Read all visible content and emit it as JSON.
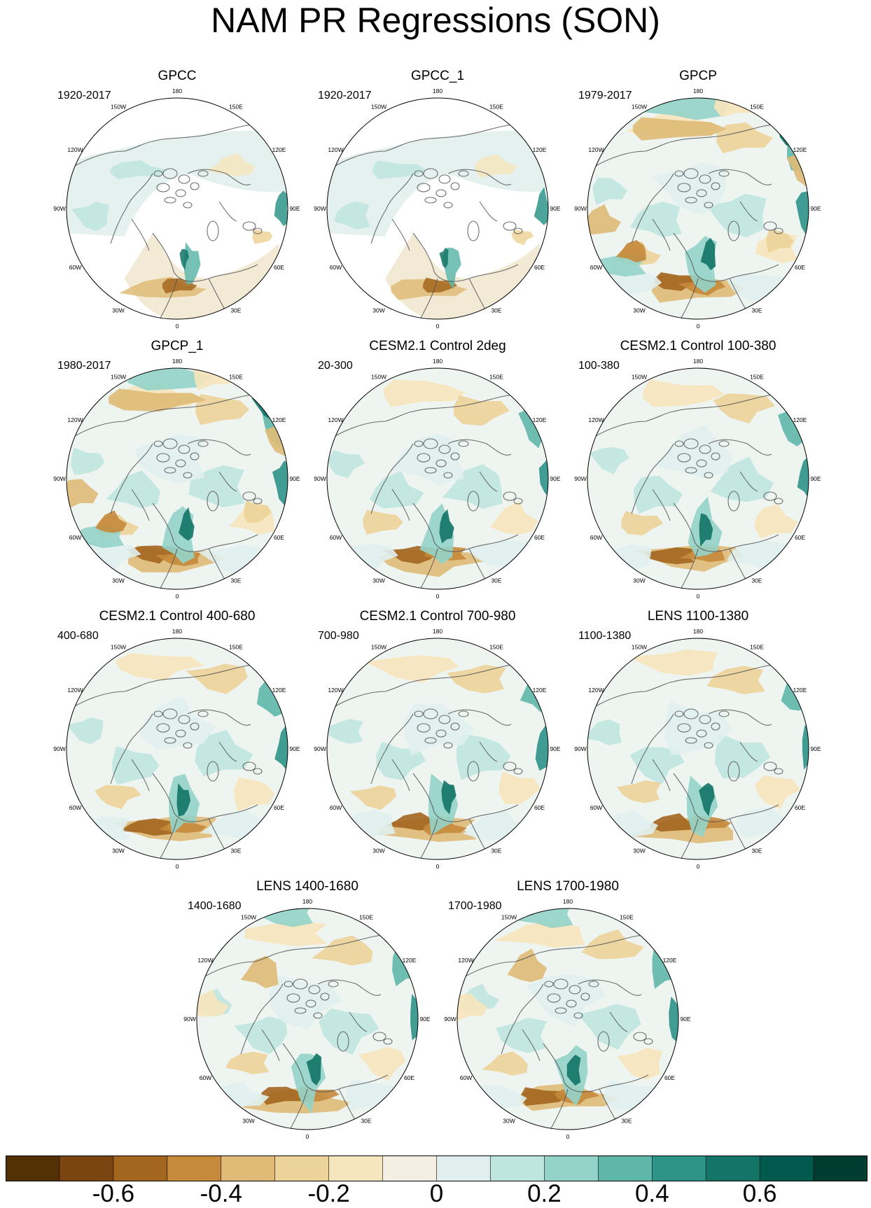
{
  "title": "NAM PR Regressions (SON)",
  "longitude_labels": [
    "180",
    "150E",
    "120E",
    "90E",
    "60E",
    "30E",
    "0",
    "30W",
    "60W",
    "90W",
    "120W",
    "150W"
  ],
  "panels": [
    {
      "title": "GPCC",
      "period": "1920-2017",
      "style": "gpcc"
    },
    {
      "title": "GPCC_1",
      "period": "1920-2017",
      "style": "gpcc"
    },
    {
      "title": "GPCP",
      "period": "1979-2017",
      "style": "obs"
    },
    {
      "title": "GPCP_1",
      "period": "1980-2017",
      "style": "obs"
    },
    {
      "title": "CESM2.1 Control 2deg",
      "period": "20-300",
      "style": "model"
    },
    {
      "title": "CESM2.1 Control 100-380",
      "period": "100-380",
      "style": "model"
    },
    {
      "title": "CESM2.1 Control 400-680",
      "period": "400-680",
      "style": "model"
    },
    {
      "title": "CESM2.1 Control 700-980",
      "period": "700-980",
      "style": "model"
    },
    {
      "title": "LENS 1100-1380",
      "period": "1100-1380",
      "style": "model"
    },
    {
      "title": "LENS 1400-1680",
      "period": "1400-1680",
      "style": "lens"
    },
    {
      "title": "LENS 1700-1980",
      "period": "1700-1980",
      "style": "lens"
    }
  ],
  "colorbar": {
    "colors": [
      "#543005",
      "#7a4510",
      "#a3661f",
      "#c58a3b",
      "#dfbb77",
      "#ecd399",
      "#f6e6bd",
      "#f4efe3",
      "#e0efee",
      "#bfe5df",
      "#93d3c8",
      "#5fb7aa",
      "#2e9488",
      "#137467",
      "#025a4e",
      "#003c30"
    ],
    "tick_labels": [
      "-0.6",
      "-0.4",
      "-0.2",
      "0",
      "0.2",
      "0.4",
      "0.6"
    ],
    "tick_values": [
      -0.6,
      -0.4,
      -0.2,
      0,
      0.2,
      0.4,
      0.6
    ],
    "min": -0.8,
    "max": 0.8
  }
}
